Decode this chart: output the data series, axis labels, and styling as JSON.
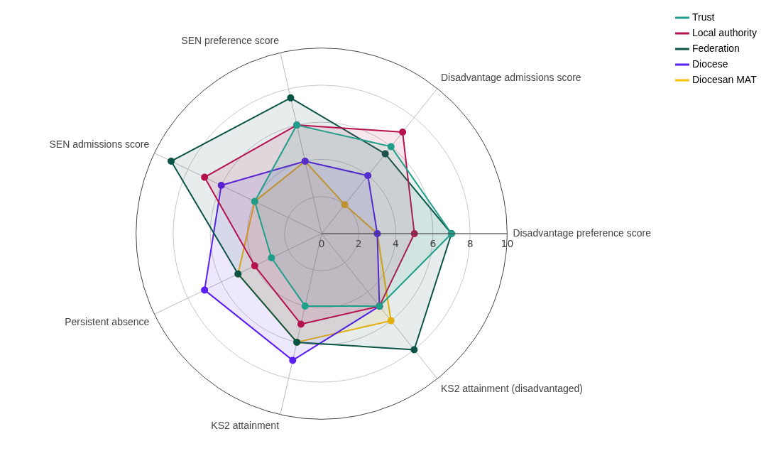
{
  "chart_data": {
    "type": "radar",
    "categories": [
      "Disadvantage admissions score",
      "Disadvantage preference score",
      "KS2 attainment (disadvantaged)",
      "KS2 attainment",
      "Persistent absence",
      "SEN admissions score",
      "SEN preference score"
    ],
    "series": [
      {
        "name": "Trust",
        "color": "#1f9e89",
        "values": [
          6,
          7,
          5,
          4,
          3,
          4,
          6
        ]
      },
      {
        "name": "Local authority",
        "color": "#b5124f",
        "values": [
          7,
          5,
          5,
          5,
          4,
          7,
          6
        ]
      },
      {
        "name": "Federation",
        "color": "#0b5345",
        "values": [
          5.5,
          7,
          8,
          6,
          5,
          9,
          7.5
        ]
      },
      {
        "name": "Diocese",
        "color": "#5a1ff5",
        "values": [
          4,
          3,
          5,
          7,
          7,
          6,
          4
        ]
      },
      {
        "name": "Diocesan MAT",
        "color": "#fbbc05",
        "values": [
          2,
          3,
          6,
          6,
          5,
          4,
          4
        ]
      }
    ],
    "ylim": [
      0,
      10
    ],
    "yticks": [
      0,
      2,
      4,
      6,
      8,
      10
    ],
    "grid": true,
    "legend": "top right",
    "marker": "circle"
  }
}
